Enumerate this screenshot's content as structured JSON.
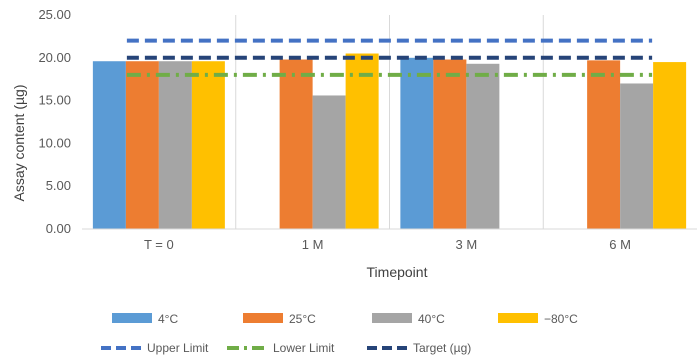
{
  "chart_data": {
    "type": "bar",
    "categories": [
      "T = 0",
      "1 M",
      "3 M",
      "6 M"
    ],
    "series": [
      {
        "name": "4°C",
        "color": "#5B9BD5",
        "values": [
          19.6,
          null,
          20.0,
          null
        ]
      },
      {
        "name": "25°C",
        "color": "#ED7D31",
        "values": [
          19.6,
          19.8,
          19.8,
          19.7
        ]
      },
      {
        "name": "40°C",
        "color": "#A5A5A5",
        "values": [
          19.6,
          15.6,
          19.3,
          17.0
        ]
      },
      {
        "name": "−80°C",
        "color": "#FFC000",
        "values": [
          19.6,
          20.5,
          null,
          19.5
        ]
      }
    ],
    "lines": [
      {
        "name": "Upper Limit",
        "value": 22.0,
        "color": "#4472C4",
        "style": "dashed"
      },
      {
        "name": "Lower Limit",
        "value": 18.0,
        "color": "#70AD47",
        "style": "dash-dot"
      },
      {
        "name": "Target (µg)",
        "value": 20.0,
        "color": "#264478",
        "style": "dashed"
      }
    ],
    "xlabel": "Timepoint",
    "ylabel": "Assay content (µg)",
    "ylim": [
      0,
      25
    ],
    "yticks": [
      "0.00",
      "5.00",
      "10.00",
      "15.00",
      "20.00",
      "25.00"
    ],
    "grid": "vertical category separators",
    "legend": "bottom"
  }
}
